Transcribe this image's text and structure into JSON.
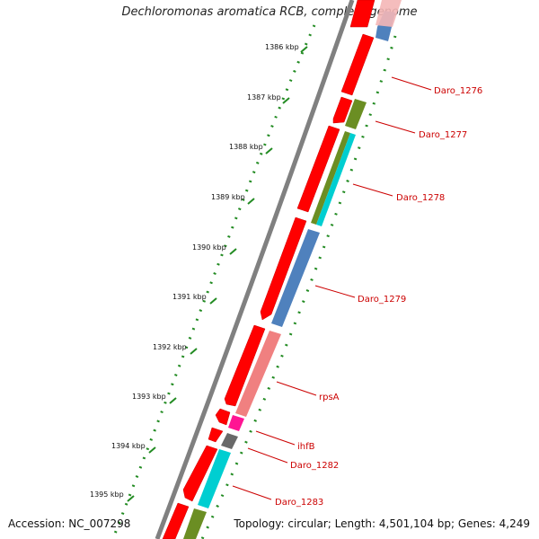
{
  "title": "Dechloromonas aromatica RCB, complete genome",
  "footer": {
    "accession": "Accession: NC_007298",
    "summary": "Topology: circular; Length: 4,501,104 bp; Genes: 4,249"
  },
  "ticks": [
    {
      "label": "1386 kbp"
    },
    {
      "label": "1387 kbp"
    },
    {
      "label": "1388 kbp"
    },
    {
      "label": "1389 kbp"
    },
    {
      "label": "1390 kbp"
    },
    {
      "label": "1391 kbp"
    },
    {
      "label": "1392 kbp"
    },
    {
      "label": "1393 kbp"
    },
    {
      "label": "1394 kbp"
    },
    {
      "label": "1395 kbp"
    }
  ],
  "genes": [
    {
      "name": "Daro_1276",
      "color": "#4f81bd"
    },
    {
      "name": "Daro_1277",
      "color": "#6b8e23"
    },
    {
      "name": "Daro_1278",
      "color": "#00ced1"
    },
    {
      "name": "Daro_1279",
      "color": "#4f81bd"
    },
    {
      "name": "rpsA",
      "color": "#f08080"
    },
    {
      "name": "ihfB",
      "color": "#ff1493"
    },
    {
      "name": "Daro_1282",
      "color": "#696969"
    },
    {
      "name": "Daro_1283",
      "color": "#00ced1"
    }
  ],
  "colors": {
    "cds_forward": "#ff0000",
    "backbone": "#808080",
    "tick_green": "#228b22",
    "label_red": "#cc0000"
  }
}
